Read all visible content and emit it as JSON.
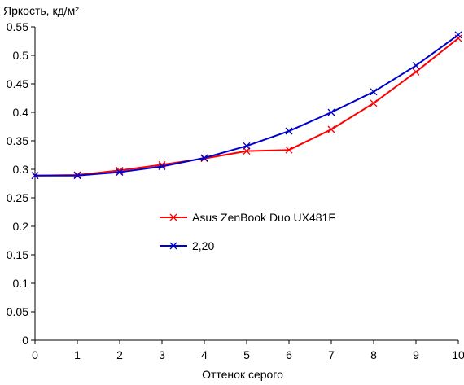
{
  "chart_data": {
    "type": "line",
    "title": "",
    "ylabel": "Яркость, кд/м²",
    "xlabel": "Оттенок серого",
    "x": [
      0,
      1,
      2,
      3,
      4,
      5,
      6,
      7,
      8,
      9,
      10
    ],
    "xlim": [
      0,
      10
    ],
    "ylim": [
      0,
      0.55
    ],
    "xticks": [
      "0",
      "1",
      "2",
      "3",
      "4",
      "5",
      "6",
      "7",
      "8",
      "9",
      "10"
    ],
    "yticks": [
      {
        "value": 0,
        "label": "0"
      },
      {
        "value": 0.05,
        "label": "0.05"
      },
      {
        "value": 0.1,
        "label": "0.1"
      },
      {
        "value": 0.15,
        "label": "0.15"
      },
      {
        "value": 0.2,
        "label": "0.2"
      },
      {
        "value": 0.25,
        "label": "0.25"
      },
      {
        "value": 0.3,
        "label": "0.3"
      },
      {
        "value": 0.35,
        "label": "0.35"
      },
      {
        "value": 0.4,
        "label": "0.4"
      },
      {
        "value": 0.45,
        "label": "0.45"
      },
      {
        "value": 0.5,
        "label": "0.5"
      },
      {
        "value": 0.55,
        "label": "0.55"
      }
    ],
    "grid": false,
    "legend_position": "center-right",
    "series": [
      {
        "name": "Asus ZenBook Duo UX481F",
        "color": "#ff0000",
        "marker": "x",
        "values": [
          0.289,
          0.29,
          0.298,
          0.308,
          0.319,
          0.332,
          0.334,
          0.37,
          0.416,
          0.471,
          0.53
        ]
      },
      {
        "name": "2,20",
        "color": "#0000cc",
        "marker": "x",
        "values": [
          0.289,
          0.289,
          0.295,
          0.305,
          0.32,
          0.341,
          0.367,
          0.4,
          0.436,
          0.482,
          0.536
        ]
      }
    ]
  }
}
